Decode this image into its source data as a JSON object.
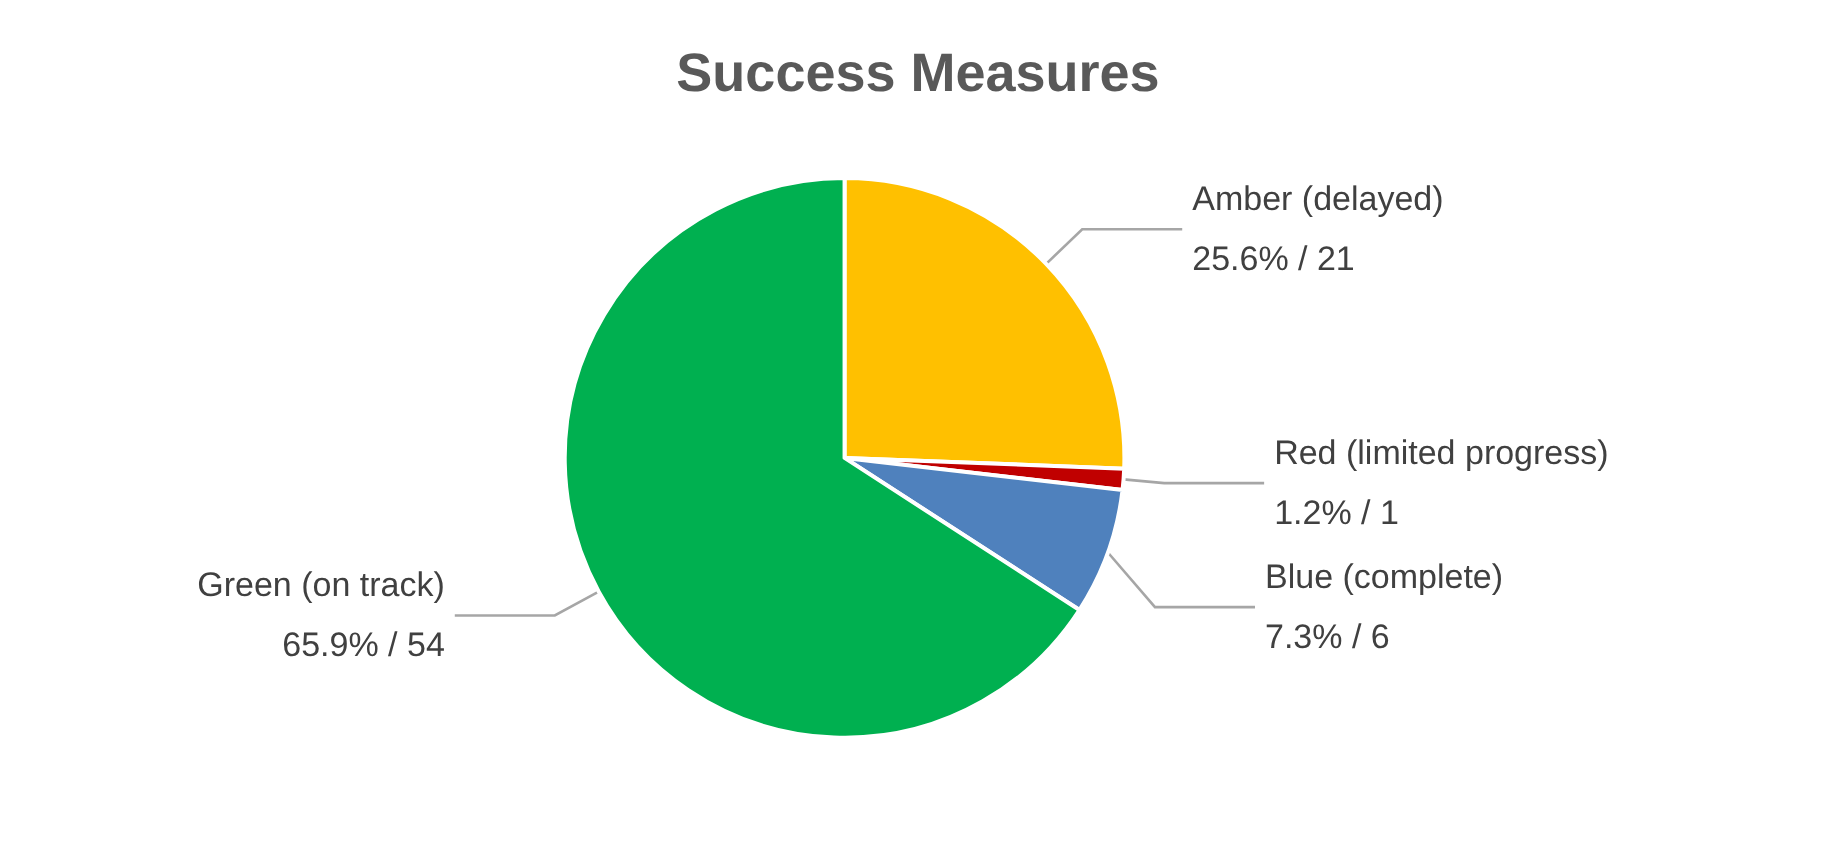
{
  "chart_data": {
    "type": "pie",
    "title": "Success Measures",
    "categories": [
      "Amber (delayed)",
      "Red (limited progress)",
      "Blue (complete)",
      "Green (on track)"
    ],
    "values": [
      21,
      1,
      6,
      54
    ],
    "colors": [
      "#ffc000",
      "#c00000",
      "#4f81bd",
      "#00b050"
    ],
    "value_labels": [
      "25.6% / 21",
      "1.2% / 1",
      "7.3% / 6",
      "65.9% / 54"
    ],
    "legend": false
  }
}
